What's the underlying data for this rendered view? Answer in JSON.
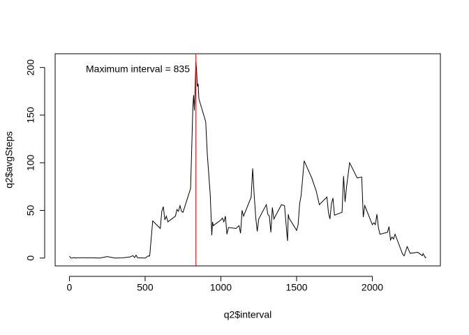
{
  "chart_data": {
    "type": "line",
    "x_label": "q2$interval",
    "y_label": "q2$avgSteps",
    "annotation": "Maximum interval =  835",
    "vline": 835,
    "vline_color": "#ff0000",
    "x": [
      0,
      10,
      20,
      30,
      40,
      50,
      100,
      110,
      150,
      200,
      250,
      300,
      350,
      400,
      420,
      430,
      440,
      450,
      500,
      520,
      530,
      550,
      600,
      610,
      620,
      630,
      640,
      650,
      700,
      710,
      720,
      730,
      740,
      750,
      800,
      810,
      815,
      820,
      825,
      830,
      835,
      840,
      845,
      850,
      855,
      900,
      910,
      930,
      940,
      945,
      950,
      1000,
      1010,
      1020,
      1030,
      1040,
      1050,
      1100,
      1120,
      1130,
      1140,
      1150,
      1200,
      1210,
      1220,
      1230,
      1240,
      1250,
      1300,
      1310,
      1320,
      1330,
      1340,
      1350,
      1400,
      1420,
      1440,
      1445,
      1450,
      1500,
      1510,
      1520,
      1530,
      1550,
      1600,
      1630,
      1650,
      1700,
      1710,
      1720,
      1730,
      1740,
      1750,
      1800,
      1810,
      1820,
      1830,
      1850,
      1900,
      1930,
      1940,
      1950,
      2000,
      2010,
      2020,
      2030,
      2040,
      2050,
      2100,
      2110,
      2120,
      2130,
      2140,
      2150,
      2200,
      2210,
      2230,
      2250,
      2300,
      2330,
      2335,
      2350,
      2355
    ],
    "series": [
      {
        "color": "#000000",
        "values": [
          1.7,
          0.1,
          0,
          0.5,
          0,
          0.3,
          0.4,
          0.2,
          0.3,
          0,
          1.5,
          0,
          0.2,
          1.2,
          2.5,
          0.5,
          3,
          0.3,
          0,
          2.2,
          2.1,
          39,
          31,
          49,
          54,
          40,
          44,
          38,
          44,
          51,
          49,
          55,
          49,
          48,
          73,
          129,
          158,
          171,
          155,
          177,
          206,
          196,
          180,
          183,
          167,
          143,
          110,
          66,
          24,
          38,
          34,
          40,
          42,
          38,
          44,
          25,
          32,
          31,
          34,
          26,
          50,
          44,
          64,
          94,
          66,
          43,
          28,
          41,
          56,
          46,
          44,
          27,
          53,
          41,
          56,
          55,
          18,
          46,
          42,
          29,
          35,
          57,
          66,
          102,
          84,
          70,
          56,
          64,
          48,
          41,
          57,
          63,
          45,
          48,
          86,
          59,
          75,
          100,
          84,
          85,
          43,
          55,
          35,
          37,
          35,
          46,
          32,
          25,
          27,
          33,
          19,
          22,
          20,
          25,
          4,
          2.3,
          12,
          5,
          6,
          2.5,
          4.7,
          0.3,
          1.1
        ]
      }
    ],
    "xlim": [
      -94.2,
      2449.2
    ],
    "ylim": [
      -8.25,
      214.4
    ],
    "xticks": [
      0,
      500,
      1000,
      1500,
      2000
    ],
    "yticks": [
      0,
      50,
      100,
      150,
      200
    ]
  }
}
